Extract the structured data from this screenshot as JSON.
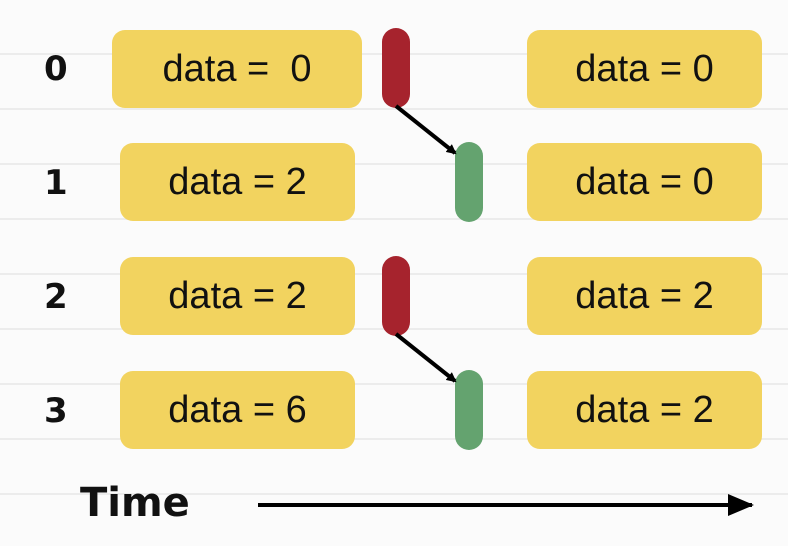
{
  "ranks": [
    "0",
    "1",
    "2",
    "3"
  ],
  "before": [
    "data =  0",
    "data = 2",
    "data = 2",
    "data = 6"
  ],
  "after": [
    "data = 0",
    "data = 0",
    "data = 2",
    "data = 2"
  ],
  "time_label": "Time",
  "colors": {
    "box": "#f2d35f",
    "sender": "#a6232d",
    "receiver": "#64a36f",
    "arrow": "#000000"
  }
}
